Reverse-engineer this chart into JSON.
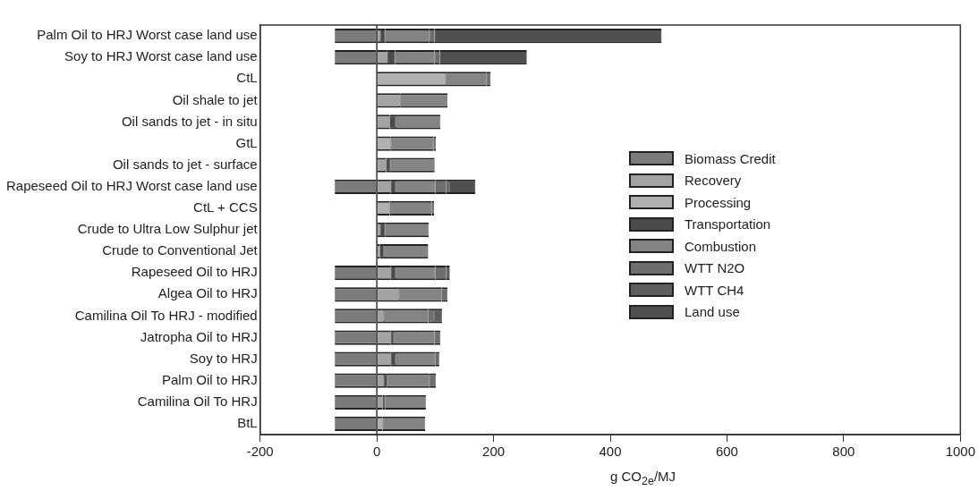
{
  "chart_data": {
    "type": "bar",
    "orientation": "horizontal",
    "stacked": true,
    "xlabel": "g CO$_{2e}$/MJ",
    "categories": [
      "Palm Oil to HRJ Worst case land use",
      "Soy to HRJ Worst case land use",
      "CtL",
      "Oil shale to jet",
      "Oil sands to jet - in situ",
      "GtL",
      "Oil sands to jet - surface",
      "Rapeseed Oil to HRJ Worst case land use",
      "CtL + CCS",
      "Crude to Ultra Low Sulphur jet",
      "Crude to Conventional Jet",
      "Rapeseed Oil to HRJ",
      "Algea Oil to HRJ",
      "Camilina Oil To HRJ - modified",
      "Jatropha Oil to HRJ",
      "Soy to HRJ",
      "Palm Oil to HRJ",
      "Camilina Oil To HRJ",
      "BtL"
    ],
    "series": [
      {
        "name": "Biomass Credit",
        "color": "#7b7b7b",
        "values": [
          -72,
          -72,
          null,
          null,
          null,
          null,
          null,
          -72,
          null,
          null,
          null,
          -72,
          -72,
          -72,
          -72,
          -72,
          -72,
          -72,
          -72
        ]
      },
      {
        "name": "Recovery",
        "color": "#a3a3a3",
        "values": [
          6,
          18,
          null,
          40,
          22,
          null,
          16,
          24,
          null,
          6,
          5,
          24,
          38,
          12,
          24,
          24,
          12,
          10,
          null
        ]
      },
      {
        "name": "Processing",
        "color": "#b0b0b0",
        "values": [
          null,
          null,
          118,
          null,
          null,
          24,
          null,
          null,
          22,
          null,
          null,
          null,
          null,
          null,
          null,
          null,
          null,
          null,
          10
        ]
      },
      {
        "name": "Transportation",
        "color": "#4a4a4a",
        "values": [
          8,
          13,
          null,
          null,
          10,
          null,
          7,
          8,
          null,
          8,
          7,
          8,
          null,
          null,
          5,
          8,
          6,
          4,
          null
        ]
      },
      {
        "name": "Combustion",
        "color": "#848484",
        "values": [
          76,
          68,
          70,
          81,
          77,
          73,
          76,
          68,
          72,
          75,
          76,
          68,
          73,
          76,
          70,
          68,
          72,
          70,
          73
        ]
      },
      {
        "name": "WTT N2O",
        "color": "#6e6e6e",
        "values": [
          9,
          9,
          7,
          null,
          null,
          4,
          null,
          19,
          4,
          null,
          null,
          19,
          10,
          10,
          10,
          7,
          11,
          null,
          null
        ]
      },
      {
        "name": "WTT CH4",
        "color": "#5e5e5e",
        "values": [
          null,
          null,
          null,
          null,
          null,
          null,
          null,
          5,
          null,
          null,
          null,
          6,
          null,
          14,
          null,
          null,
          null,
          null,
          null
        ]
      },
      {
        "name": "Land use",
        "color": "#505050",
        "values": [
          389,
          149,
          null,
          null,
          null,
          null,
          null,
          45,
          null,
          null,
          null,
          null,
          null,
          null,
          null,
          null,
          null,
          null,
          null
        ]
      }
    ],
    "xlim": [
      -200,
      1000
    ],
    "xticks": [
      -200,
      0,
      200,
      400,
      600,
      800,
      1000
    ],
    "ref_lines": [
      {
        "axis": "x",
        "value": 0,
        "color": "#333333"
      }
    ],
    "grid": false,
    "legend": "right"
  }
}
